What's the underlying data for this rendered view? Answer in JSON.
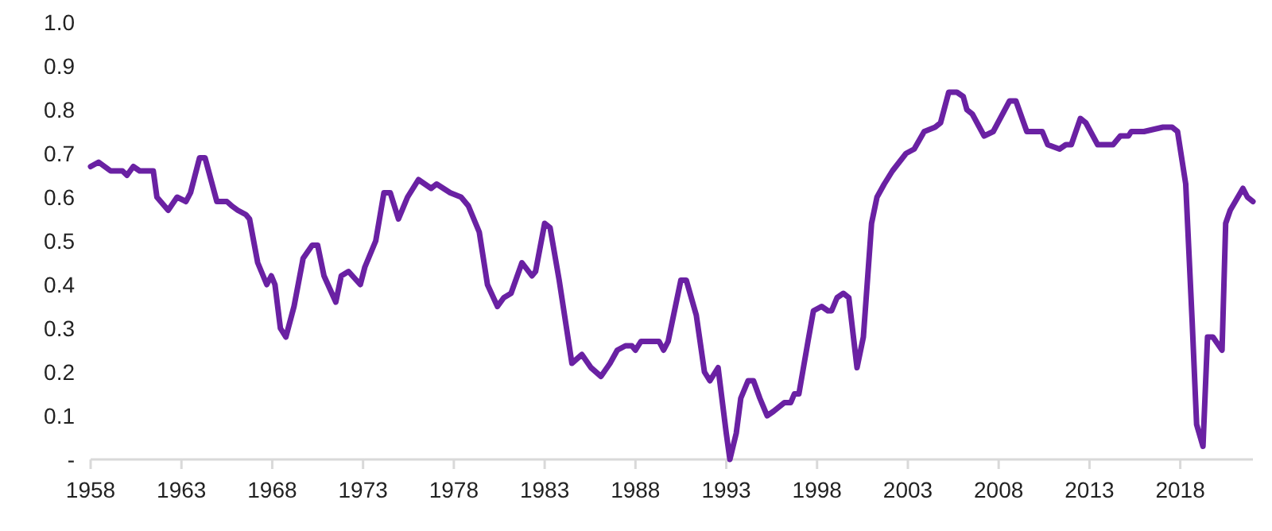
{
  "chart_data": {
    "type": "line",
    "x": [
      1958.0,
      1958.44,
      1959.1,
      1959.75,
      1960.0,
      1960.35,
      1960.7,
      1961.45,
      1961.65,
      1962.27,
      1962.76,
      1963.25,
      1963.5,
      1964.0,
      1964.3,
      1964.95,
      1965.5,
      1965.77,
      1966.1,
      1966.55,
      1966.75,
      1967.2,
      1967.7,
      1967.95,
      1968.15,
      1968.45,
      1968.75,
      1969.2,
      1969.7,
      1970.2,
      1970.5,
      1970.85,
      1971.5,
      1971.8,
      1972.2,
      1972.85,
      1973.1,
      1973.7,
      1974.15,
      1974.5,
      1974.95,
      1975.45,
      1976.05,
      1976.4,
      1976.75,
      1977.05,
      1977.8,
      1978.4,
      1978.8,
      1979.4,
      1979.85,
      1980.4,
      1980.75,
      1981.15,
      1981.75,
      1982.3,
      1982.5,
      1983.0,
      1983.3,
      1983.8,
      1984.5,
      1985.05,
      1985.55,
      1986.1,
      1986.6,
      1987.0,
      1987.45,
      1987.8,
      1988.0,
      1988.3,
      1988.9,
      1989.3,
      1989.55,
      1989.8,
      1990.5,
      1990.8,
      1991.35,
      1991.8,
      1992.1,
      1992.55,
      1993.0,
      1993.2,
      1993.55,
      1993.8,
      1994.2,
      1994.5,
      1994.85,
      1995.25,
      1995.6,
      1996.2,
      1996.55,
      1996.75,
      1997.0,
      1997.5,
      1997.8,
      1998.25,
      1998.6,
      1998.8,
      1999.1,
      1999.45,
      1999.75,
      2000.2,
      2000.55,
      2001.0,
      2001.3,
      2001.7,
      2002.15,
      2002.9,
      2003.35,
      2003.9,
      2004.5,
      2004.8,
      2005.25,
      2005.7,
      2006.05,
      2006.25,
      2006.55,
      2007.2,
      2007.7,
      2008.6,
      2008.95,
      2009.55,
      2010.05,
      2010.4,
      2010.7,
      2011.35,
      2011.7,
      2012.0,
      2012.5,
      2012.8,
      2013.45,
      2014.3,
      2014.7,
      2015.15,
      2015.3,
      2016.0,
      2017.05,
      2017.55,
      2017.85,
      2018.3,
      2018.65,
      2018.9,
      2019.25,
      2019.5,
      2019.8,
      2020.3,
      2020.5,
      2020.75,
      2021.45,
      2021.7,
      2022.0
    ],
    "series": [
      {
        "color": "#6a21a3",
        "values": [
          0.67,
          0.68,
          0.66,
          0.66,
          0.65,
          0.67,
          0.66,
          0.66,
          0.6,
          0.57,
          0.6,
          0.59,
          0.61,
          0.69,
          0.69,
          0.59,
          0.59,
          0.58,
          0.57,
          0.56,
          0.55,
          0.45,
          0.4,
          0.42,
          0.4,
          0.3,
          0.28,
          0.35,
          0.46,
          0.49,
          0.49,
          0.42,
          0.36,
          0.42,
          0.43,
          0.4,
          0.44,
          0.5,
          0.61,
          0.61,
          0.55,
          0.6,
          0.64,
          0.63,
          0.62,
          0.63,
          0.61,
          0.6,
          0.58,
          0.52,
          0.4,
          0.35,
          0.37,
          0.38,
          0.45,
          0.42,
          0.43,
          0.54,
          0.53,
          0.41,
          0.22,
          0.24,
          0.21,
          0.19,
          0.22,
          0.25,
          0.26,
          0.26,
          0.25,
          0.27,
          0.27,
          0.27,
          0.25,
          0.27,
          0.41,
          0.41,
          0.33,
          0.2,
          0.18,
          0.21,
          0.06,
          0.0,
          0.06,
          0.14,
          0.18,
          0.18,
          0.14,
          0.1,
          0.11,
          0.13,
          0.13,
          0.15,
          0.15,
          0.27,
          0.34,
          0.35,
          0.34,
          0.34,
          0.37,
          0.38,
          0.37,
          0.21,
          0.28,
          0.54,
          0.6,
          0.63,
          0.66,
          0.7,
          0.71,
          0.75,
          0.76,
          0.77,
          0.84,
          0.84,
          0.83,
          0.8,
          0.79,
          0.74,
          0.75,
          0.82,
          0.82,
          0.75,
          0.75,
          0.75,
          0.72,
          0.71,
          0.72,
          0.72,
          0.78,
          0.77,
          0.72,
          0.72,
          0.74,
          0.74,
          0.75,
          0.75,
          0.76,
          0.76,
          0.75,
          0.63,
          0.32,
          0.08,
          0.03,
          0.28,
          0.28,
          0.25,
          0.54,
          0.57,
          0.62,
          0.6,
          0.59
        ]
      }
    ],
    "xlim": [
      1958,
      2022
    ],
    "xticks": [
      1958,
      1963,
      1968,
      1973,
      1978,
      1983,
      1988,
      1993,
      1998,
      2003,
      2008,
      2013,
      2018
    ],
    "ylim": [
      0,
      1
    ],
    "yticks": [
      {
        "value": 0,
        "label": "-"
      },
      0.1,
      0.2,
      0.3,
      0.4,
      0.5,
      0.6,
      0.7,
      0.8,
      0.9,
      {
        "value": 1,
        "label": "1.0"
      }
    ],
    "grid": false,
    "marker": "none",
    "line_style": "solid"
  }
}
